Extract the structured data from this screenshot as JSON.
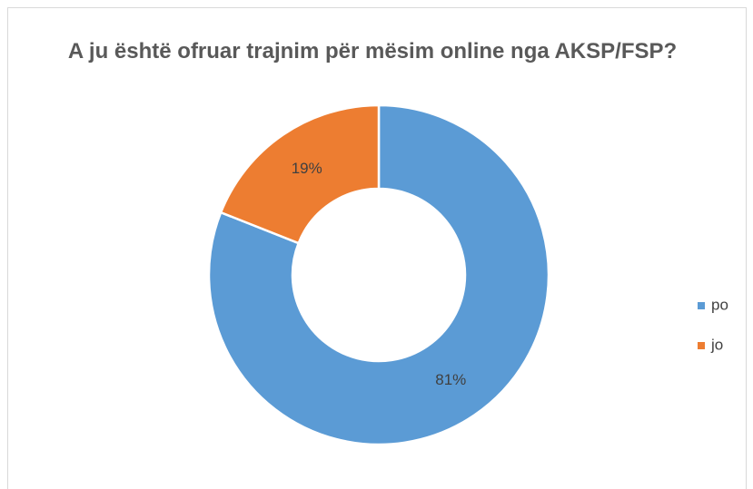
{
  "chart_data": {
    "type": "donut",
    "title": "A ju është ofruar trajnim për mësim online nga AKSP/FSP?",
    "categories": [
      "po",
      "jo"
    ],
    "values": [
      81,
      19
    ],
    "value_labels": [
      "81%",
      "19%"
    ],
    "colors": [
      "#5b9bd5",
      "#ed7d31"
    ],
    "legend": "right"
  }
}
